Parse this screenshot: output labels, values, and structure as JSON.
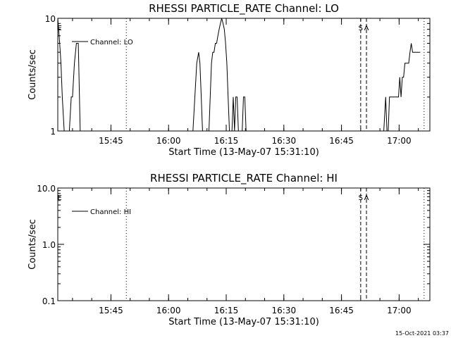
{
  "timestamp": "15-Oct-2021 03:37",
  "chart_data": [
    {
      "type": "line",
      "title": "RHESSI PARTICLE_RATE Channel: LO",
      "xlabel": "Start Time (13-May-07 15:31:10)",
      "ylabel": "Counts/sec",
      "yscale": "log",
      "xlim": [
        "15:31:10",
        "17:08:00"
      ],
      "ylim": [
        1,
        10
      ],
      "xticks": [
        "15:45",
        "16:00",
        "16:15",
        "16:30",
        "16:45",
        "17:00"
      ],
      "yticks": [
        1,
        10
      ],
      "ytick_labels": [
        "1",
        "10"
      ],
      "grid": false,
      "legend": {
        "placement": "top-left",
        "entries": [
          "Channel: LO"
        ]
      },
      "series": [
        {
          "name": "Channel: LO",
          "x": [
            "15:31:10",
            "15:31:40",
            "15:32:00",
            "15:32:20",
            "15:32:50",
            "15:33:20",
            "15:33:40",
            "15:34:10",
            "15:34:40",
            "15:35:00",
            "15:35:30",
            "15:36:00",
            "15:36:30",
            "15:37:00",
            "16:06:20",
            "16:06:50",
            "16:07:20",
            "16:07:50",
            "16:08:10",
            "16:08:30",
            "16:08:50",
            "16:09:10",
            "16:09:30",
            "16:09:50",
            "16:10:10",
            "16:10:30",
            "16:10:50",
            "16:11:10",
            "16:11:30",
            "16:11:50",
            "16:12:10",
            "16:12:30",
            "16:12:50",
            "16:13:10",
            "16:13:30",
            "16:13:50",
            "16:14:10",
            "16:14:30",
            "16:14:50",
            "16:15:10",
            "16:15:30",
            "16:15:50",
            "16:16:10",
            "16:16:30",
            "16:16:50",
            "16:17:10",
            "16:17:30",
            "16:17:50",
            "16:18:10",
            "16:18:30",
            "16:18:50",
            "16:19:10",
            "16:19:30",
            "16:19:50",
            "16:20:10",
            "16:20:30",
            "16:20:50",
            "16:21:10",
            "16:21:30",
            "16:21:50",
            "16:22:10",
            "16:22:30",
            "16:22:50",
            "16:23:10",
            "16:23:30",
            "16:56:00",
            "16:56:30",
            "16:56:50",
            "16:57:10",
            "16:57:30",
            "16:57:50",
            "16:58:10",
            "16:58:30",
            "16:58:50",
            "16:59:10",
            "16:59:30",
            "16:59:50",
            "17:00:10",
            "17:00:30",
            "17:00:50",
            "17:01:10",
            "17:01:30",
            "17:01:50",
            "17:02:10",
            "17:02:30",
            "17:02:50",
            "17:03:10",
            "17:03:30",
            "17:03:50",
            "17:04:10",
            "17:04:30",
            "17:04:50",
            "17:05:10",
            "17:05:30"
          ],
          "y": [
            10,
            6,
            4,
            2,
            1,
            1,
            1,
            1,
            2,
            2,
            4,
            6,
            6,
            1,
            1,
            2,
            4,
            5,
            4,
            2,
            1,
            1,
            1,
            1,
            1,
            1,
            2,
            4,
            5,
            5,
            6,
            6,
            7,
            8,
            9,
            10,
            9,
            8,
            6,
            4,
            2,
            1,
            1,
            1,
            2,
            1,
            2,
            2,
            1,
            1,
            1,
            1,
            2,
            2,
            1,
            1,
            1,
            1,
            1,
            1,
            1,
            1,
            1,
            1,
            1,
            1,
            2,
            1,
            1,
            2,
            2,
            2,
            2,
            2,
            2,
            2,
            2,
            3,
            2,
            3,
            3,
            4,
            4,
            4,
            4,
            5,
            6,
            5,
            5,
            5,
            5,
            5,
            5,
            5
          ]
        }
      ],
      "markers": [
        {
          "label": "E",
          "time": "15:31:40",
          "style": "none"
        },
        {
          "label": "",
          "time": "15:49:00",
          "style": "dotted"
        },
        {
          "label": "S",
          "time": "16:50:00",
          "style": "dashed"
        },
        {
          "label": "A",
          "time": "16:51:30",
          "style": "dashed"
        },
        {
          "label": "",
          "time": "17:06:30",
          "style": "dotted"
        }
      ]
    },
    {
      "type": "line",
      "title": "RHESSI PARTICLE_RATE Channel: HI",
      "xlabel": "Start Time (13-May-07 15:31:10)",
      "ylabel": "Counts/sec",
      "yscale": "log",
      "xlim": [
        "15:31:10",
        "17:08:00"
      ],
      "ylim": [
        0.1,
        10
      ],
      "xticks": [
        "15:45",
        "16:00",
        "16:15",
        "16:30",
        "16:45",
        "17:00"
      ],
      "yticks": [
        0.1,
        1,
        10
      ],
      "ytick_labels": [
        "0.1",
        "1.0",
        "10.0"
      ],
      "grid": false,
      "legend": {
        "placement": "top-left",
        "entries": [
          "Channel: HI"
        ]
      },
      "series": [
        {
          "name": "Channel: HI",
          "x": [],
          "y": []
        }
      ],
      "markers": [
        {
          "label": "E",
          "time": "15:31:40",
          "style": "none"
        },
        {
          "label": "",
          "time": "15:49:00",
          "style": "dotted"
        },
        {
          "label": "S",
          "time": "16:50:00",
          "style": "dashed"
        },
        {
          "label": "A",
          "time": "16:51:30",
          "style": "dashed"
        },
        {
          "label": "",
          "time": "17:06:30",
          "style": "dotted"
        }
      ]
    }
  ]
}
